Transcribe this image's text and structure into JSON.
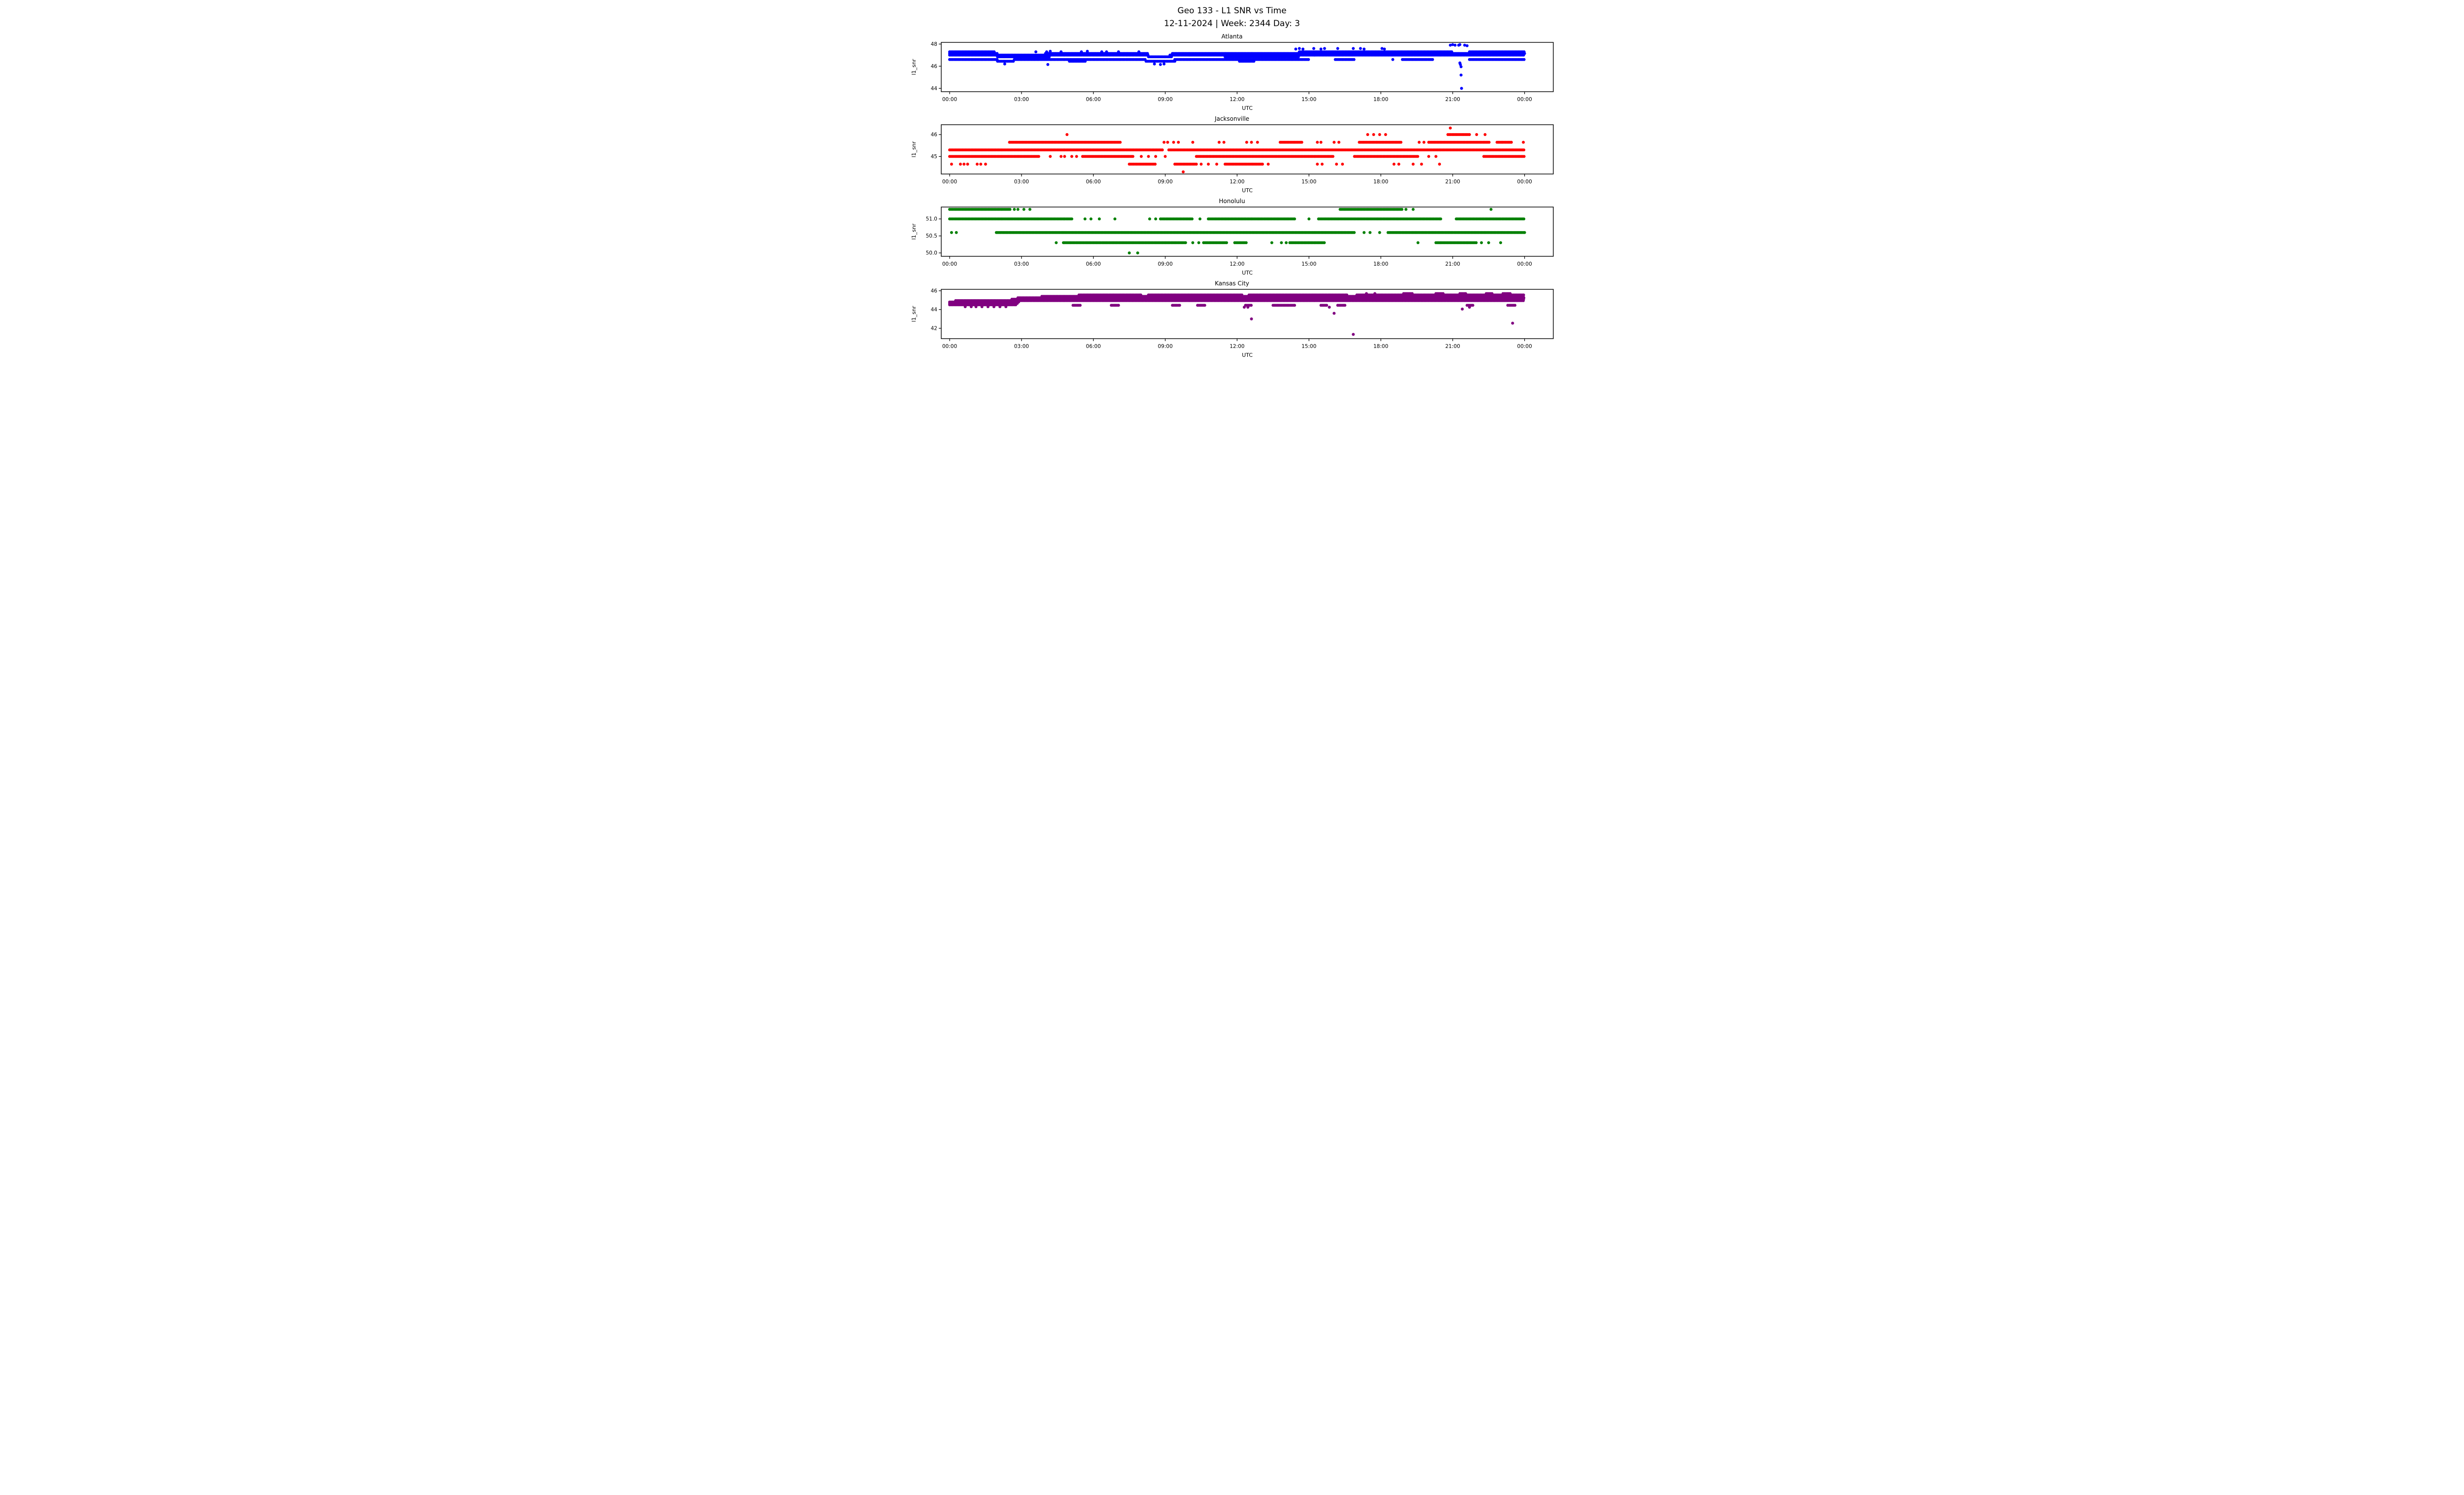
{
  "chart_data": {
    "type": "scatter",
    "title": "Geo 133 - L1 SNR vs Time",
    "subtitle": "12-11-2024 | Week: 2344 Day: 3",
    "xlabel": "UTC",
    "ylabel": "l1_snr",
    "grid": false,
    "legend": false,
    "x_tick_labels": [
      "00:00",
      "03:00",
      "06:00",
      "09:00",
      "12:00",
      "15:00",
      "18:00",
      "21:00",
      "00:00"
    ],
    "x_tick_hours": [
      0,
      3,
      6,
      9,
      12,
      15,
      18,
      21,
      24
    ],
    "x_range_hours": [
      -0.35,
      25.2
    ],
    "marker": {
      "shape": "circle",
      "radius_px": 3
    },
    "subplots": [
      {
        "title": "Atlanta",
        "color": "#0000ff",
        "ylim": [
          43.7,
          48.15
        ],
        "yticks": [
          44,
          46,
          48
        ],
        "ytick_labels": [
          "44",
          "46",
          "48"
        ],
        "bands": [
          {
            "y": 47.3,
            "segments": [
              [
                0.0,
                1.9
              ],
              [
                14.6,
                21.0
              ],
              [
                21.7,
                24.0
              ]
            ]
          },
          {
            "y": 47.15,
            "segments": [
              [
                0.0,
                2.0
              ],
              [
                4.0,
                8.3
              ],
              [
                9.3,
                24.0
              ]
            ]
          },
          {
            "y": 47.0,
            "segments": [
              [
                0.0,
                8.3
              ],
              [
                9.2,
                24.0
              ]
            ]
          },
          {
            "y": 46.85,
            "segments": [
              [
                2.0,
                4.2
              ],
              [
                8.3,
                9.3
              ],
              [
                11.5,
                14.6
              ]
            ]
          },
          {
            "y": 46.6,
            "segments": [
              [
                0.0,
                2.0
              ],
              [
                2.7,
                8.2
              ],
              [
                9.4,
                15.0
              ],
              [
                16.1,
                16.9
              ],
              [
                18.9,
                20.2
              ],
              [
                21.7,
                24.0
              ]
            ]
          },
          {
            "y": 46.45,
            "segments": [
              [
                2.0,
                2.7
              ],
              [
                5.0,
                5.7
              ],
              [
                8.2,
                9.4
              ],
              [
                12.1,
                12.7
              ]
            ]
          }
        ],
        "points": [
          [
            3.6,
            47.3
          ],
          [
            4.05,
            47.3
          ],
          [
            4.2,
            47.35
          ],
          [
            4.65,
            47.3
          ],
          [
            5.5,
            47.3
          ],
          [
            5.75,
            47.35
          ],
          [
            6.35,
            47.3
          ],
          [
            6.55,
            47.3
          ],
          [
            7.05,
            47.3
          ],
          [
            7.9,
            47.3
          ],
          [
            14.45,
            47.55
          ],
          [
            14.6,
            47.6
          ],
          [
            14.75,
            47.55
          ],
          [
            15.2,
            47.6
          ],
          [
            15.5,
            47.55
          ],
          [
            15.65,
            47.6
          ],
          [
            16.2,
            47.6
          ],
          [
            16.85,
            47.6
          ],
          [
            17.15,
            47.6
          ],
          [
            17.3,
            47.55
          ],
          [
            18.05,
            47.6
          ],
          [
            18.15,
            47.55
          ],
          [
            20.9,
            47.9
          ],
          [
            21.0,
            47.95
          ],
          [
            21.1,
            47.9
          ],
          [
            21.25,
            47.9
          ],
          [
            21.3,
            47.95
          ],
          [
            21.5,
            47.9
          ],
          [
            21.6,
            47.85
          ],
          [
            2.3,
            46.2
          ],
          [
            4.1,
            46.15
          ],
          [
            8.55,
            46.2
          ],
          [
            8.8,
            46.15
          ],
          [
            8.95,
            46.2
          ],
          [
            18.5,
            46.6
          ],
          [
            21.3,
            46.3
          ],
          [
            21.32,
            46.15
          ],
          [
            21.35,
            45.95
          ],
          [
            21.35,
            45.2
          ],
          [
            21.37,
            44.0
          ]
        ]
      },
      {
        "title": "Jacksonville",
        "color": "#ff0000",
        "ylim": [
          44.2,
          46.45
        ],
        "yticks": [
          45,
          46
        ],
        "ytick_labels": [
          "45",
          "46"
        ],
        "bands": [
          {
            "y": 46.0,
            "segments": [
              [
                20.8,
                21.7
              ]
            ]
          },
          {
            "y": 45.65,
            "segments": [
              [
                2.5,
                7.15
              ],
              [
                13.8,
                14.7
              ],
              [
                17.1,
                18.85
              ],
              [
                20.0,
                22.55
              ],
              [
                22.85,
                23.45
              ]
            ]
          },
          {
            "y": 45.3,
            "segments": [
              [
                0.0,
                8.9
              ],
              [
                9.15,
                24.0
              ]
            ]
          },
          {
            "y": 45.0,
            "segments": [
              [
                0.0,
                3.75
              ],
              [
                5.55,
                7.65
              ],
              [
                10.3,
                16.0
              ],
              [
                16.9,
                19.55
              ],
              [
                22.3,
                24.0
              ]
            ]
          },
          {
            "y": 44.65,
            "segments": [
              [
                7.5,
                8.6
              ],
              [
                9.4,
                10.3
              ],
              [
                11.5,
                13.1
              ]
            ]
          }
        ],
        "points": [
          [
            20.9,
            46.3
          ],
          [
            4.9,
            46.0
          ],
          [
            17.45,
            46.0
          ],
          [
            17.7,
            46.0
          ],
          [
            17.95,
            46.0
          ],
          [
            18.2,
            46.0
          ],
          [
            22.0,
            46.0
          ],
          [
            22.35,
            46.0
          ],
          [
            8.95,
            45.65
          ],
          [
            9.1,
            45.65
          ],
          [
            9.35,
            45.65
          ],
          [
            9.55,
            45.65
          ],
          [
            10.15,
            45.65
          ],
          [
            11.25,
            45.65
          ],
          [
            11.45,
            45.65
          ],
          [
            12.4,
            45.65
          ],
          [
            12.6,
            45.65
          ],
          [
            12.85,
            45.65
          ],
          [
            15.35,
            45.65
          ],
          [
            15.5,
            45.65
          ],
          [
            16.05,
            45.65
          ],
          [
            16.25,
            45.65
          ],
          [
            19.6,
            45.65
          ],
          [
            19.8,
            45.65
          ],
          [
            23.95,
            45.65
          ],
          [
            4.2,
            45.0
          ],
          [
            4.65,
            45.0
          ],
          [
            4.8,
            45.0
          ],
          [
            5.1,
            45.0
          ],
          [
            5.3,
            45.0
          ],
          [
            8.0,
            45.0
          ],
          [
            8.3,
            45.0
          ],
          [
            8.6,
            45.0
          ],
          [
            9.0,
            45.0
          ],
          [
            20.0,
            45.0
          ],
          [
            20.3,
            45.0
          ],
          [
            0.08,
            44.65
          ],
          [
            0.45,
            44.65
          ],
          [
            0.6,
            44.65
          ],
          [
            0.75,
            44.65
          ],
          [
            1.15,
            44.65
          ],
          [
            1.3,
            44.65
          ],
          [
            1.5,
            44.65
          ],
          [
            10.5,
            44.65
          ],
          [
            10.8,
            44.65
          ],
          [
            11.15,
            44.65
          ],
          [
            13.3,
            44.65
          ],
          [
            15.35,
            44.65
          ],
          [
            15.55,
            44.65
          ],
          [
            16.15,
            44.65
          ],
          [
            16.4,
            44.65
          ],
          [
            18.55,
            44.65
          ],
          [
            18.75,
            44.65
          ],
          [
            19.35,
            44.65
          ],
          [
            19.7,
            44.65
          ],
          [
            20.45,
            44.65
          ],
          [
            9.75,
            44.3
          ]
        ]
      },
      {
        "title": "Honolulu",
        "color": "#008000",
        "ylim": [
          49.9,
          51.35
        ],
        "yticks": [
          50.0,
          50.5,
          51.0
        ],
        "ytick_labels": [
          "50.0",
          "50.5",
          "51.0"
        ],
        "bands": [
          {
            "y": 51.28,
            "segments": [
              [
                0.0,
                2.55
              ],
              [
                16.3,
                18.9
              ]
            ]
          },
          {
            "y": 51.0,
            "segments": [
              [
                0.0,
                5.15
              ],
              [
                8.8,
                10.15
              ],
              [
                10.8,
                14.45
              ],
              [
                15.4,
                20.55
              ],
              [
                21.15,
                24.0
              ]
            ]
          },
          {
            "y": 50.6,
            "segments": [
              [
                1.95,
                16.9
              ],
              [
                18.3,
                24.0
              ]
            ]
          },
          {
            "y": 50.3,
            "segments": [
              [
                4.75,
                9.85
              ],
              [
                10.6,
                11.6
              ],
              [
                11.9,
                12.4
              ],
              [
                14.2,
                15.65
              ],
              [
                20.3,
                22.0
              ]
            ]
          }
        ],
        "points": [
          [
            2.7,
            51.28
          ],
          [
            2.85,
            51.28
          ],
          [
            3.1,
            51.28
          ],
          [
            3.35,
            51.28
          ],
          [
            19.05,
            51.28
          ],
          [
            19.35,
            51.28
          ],
          [
            22.6,
            51.28
          ],
          [
            5.65,
            51.0
          ],
          [
            5.9,
            51.0
          ],
          [
            6.25,
            51.0
          ],
          [
            6.9,
            51.0
          ],
          [
            8.35,
            51.0
          ],
          [
            8.6,
            51.0
          ],
          [
            10.45,
            51.0
          ],
          [
            15.0,
            51.0
          ],
          [
            0.08,
            50.6
          ],
          [
            0.28,
            50.6
          ],
          [
            17.3,
            50.6
          ],
          [
            17.55,
            50.6
          ],
          [
            17.95,
            50.6
          ],
          [
            4.45,
            50.3
          ],
          [
            10.15,
            50.3
          ],
          [
            10.4,
            50.3
          ],
          [
            13.45,
            50.3
          ],
          [
            13.85,
            50.3
          ],
          [
            14.05,
            50.3
          ],
          [
            19.55,
            50.3
          ],
          [
            22.2,
            50.3
          ],
          [
            22.5,
            50.3
          ],
          [
            23.0,
            50.3
          ],
          [
            7.5,
            50.0
          ],
          [
            7.85,
            50.0
          ]
        ]
      },
      {
        "title": "Kansas City",
        "color": "#800080",
        "ylim": [
          40.9,
          46.15
        ],
        "yticks": [
          42,
          44,
          46
        ],
        "ytick_labels": [
          "42",
          "44",
          "46"
        ],
        "bands": [
          {
            "y": 45.7,
            "segments": [
              [
                18.95,
                19.35
              ],
              [
                20.3,
                20.6
              ],
              [
                21.3,
                21.55
              ],
              [
                22.4,
                22.65
              ],
              [
                23.1,
                23.45
              ]
            ]
          },
          {
            "y": 45.55,
            "segments": [
              [
                5.4,
                8.0
              ],
              [
                8.3,
                12.2
              ],
              [
                12.5,
                16.6
              ],
              [
                17.0,
                24.0
              ]
            ]
          },
          {
            "y": 45.4,
            "segments": [
              [
                3.85,
                24.0
              ]
            ]
          },
          {
            "y": 45.25,
            "segments": [
              [
                2.85,
                24.0
              ]
            ]
          },
          {
            "y": 45.1,
            "segments": [
              [
                2.6,
                24.0
              ]
            ]
          },
          {
            "y": 44.95,
            "segments": [
              [
                0.25,
                24.0
              ]
            ]
          },
          {
            "y": 44.8,
            "segments": [
              [
                0.0,
                2.9
              ]
            ]
          },
          {
            "y": 44.65,
            "segments": [
              [
                0.0,
                2.85
              ]
            ]
          },
          {
            "y": 44.5,
            "segments": [
              [
                0.0,
                2.8
              ]
            ]
          },
          {
            "y": 44.45,
            "segments": [
              [
                5.15,
                5.5
              ],
              [
                6.75,
                7.05
              ],
              [
                9.3,
                9.6
              ],
              [
                10.35,
                10.65
              ],
              [
                12.35,
                12.6
              ],
              [
                13.5,
                14.45
              ],
              [
                15.5,
                15.75
              ],
              [
                16.2,
                16.5
              ],
              [
                21.6,
                21.85
              ],
              [
                23.3,
                23.6
              ]
            ]
          }
        ],
        "points": [
          [
            0.65,
            44.3
          ],
          [
            0.9,
            44.3
          ],
          [
            1.1,
            44.3
          ],
          [
            1.35,
            44.3
          ],
          [
            1.6,
            44.3
          ],
          [
            1.85,
            44.3
          ],
          [
            2.1,
            44.3
          ],
          [
            2.35,
            44.3
          ],
          [
            12.3,
            44.25
          ],
          [
            12.45,
            44.25
          ],
          [
            15.85,
            44.25
          ],
          [
            21.7,
            44.25
          ],
          [
            17.4,
            45.7
          ],
          [
            17.75,
            45.7
          ],
          [
            12.6,
            43.0
          ],
          [
            16.05,
            43.6
          ],
          [
            16.85,
            41.35
          ],
          [
            21.4,
            44.05
          ],
          [
            23.5,
            42.55
          ]
        ]
      }
    ]
  }
}
